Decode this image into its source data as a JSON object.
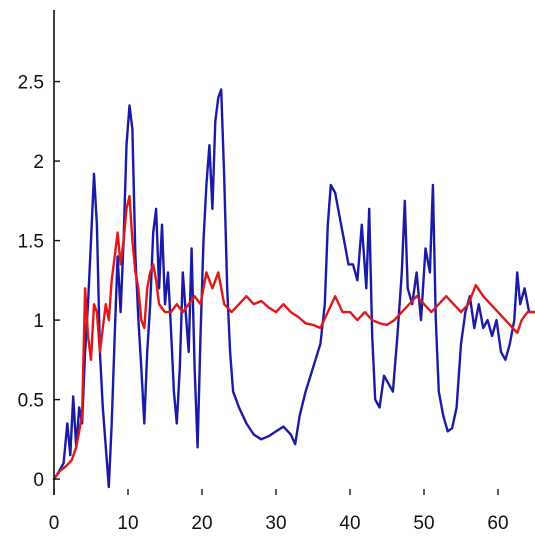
{
  "chart_data": {
    "type": "line",
    "title": "",
    "xlabel": "",
    "ylabel": "",
    "xlim": [
      0,
      65
    ],
    "ylim": [
      -0.1,
      2.95
    ],
    "x_ticks": [
      0,
      10,
      20,
      30,
      40,
      50,
      60
    ],
    "y_ticks": [
      0,
      0.5,
      1,
      1.5,
      2,
      2.5
    ],
    "x_tick_labels": [
      "0",
      "10",
      "20",
      "30",
      "40",
      "50",
      "60"
    ],
    "y_tick_labels": [
      "0",
      "0.5",
      "1",
      "1.5",
      "2",
      "2.5"
    ],
    "grid": false,
    "series": [
      {
        "color": "#1a1aa6",
        "points": [
          [
            0,
            0.0
          ],
          [
            0.7,
            0.05
          ],
          [
            1.3,
            0.1
          ],
          [
            1.8,
            0.35
          ],
          [
            2.2,
            0.15
          ],
          [
            2.6,
            0.52
          ],
          [
            3.0,
            0.2
          ],
          [
            3.4,
            0.45
          ],
          [
            3.8,
            0.35
          ],
          [
            4.2,
            0.8
          ],
          [
            4.6,
            1.1
          ],
          [
            5.0,
            1.5
          ],
          [
            5.4,
            1.92
          ],
          [
            5.8,
            1.6
          ],
          [
            6.2,
            0.8
          ],
          [
            6.6,
            0.45
          ],
          [
            7.0,
            0.2
          ],
          [
            7.4,
            -0.05
          ],
          [
            7.8,
            0.35
          ],
          [
            8.2,
            0.9
          ],
          [
            8.6,
            1.4
          ],
          [
            9.0,
            1.05
          ],
          [
            9.4,
            1.5
          ],
          [
            9.8,
            2.1
          ],
          [
            10.2,
            2.35
          ],
          [
            10.6,
            2.2
          ],
          [
            11.0,
            1.4
          ],
          [
            11.4,
            1.0
          ],
          [
            11.8,
            0.7
          ],
          [
            12.2,
            0.35
          ],
          [
            12.6,
            0.8
          ],
          [
            13.0,
            1.1
          ],
          [
            13.4,
            1.55
          ],
          [
            13.8,
            1.7
          ],
          [
            14.2,
            1.2
          ],
          [
            14.6,
            1.6
          ],
          [
            15.0,
            1.1
          ],
          [
            15.4,
            1.3
          ],
          [
            15.8,
            0.95
          ],
          [
            16.2,
            0.55
          ],
          [
            16.6,
            0.35
          ],
          [
            17.0,
            0.7
          ],
          [
            17.4,
            1.3
          ],
          [
            17.8,
            1.05
          ],
          [
            18.2,
            0.8
          ],
          [
            18.6,
            1.45
          ],
          [
            19.0,
            0.7
          ],
          [
            19.4,
            0.2
          ],
          [
            19.8,
            0.9
          ],
          [
            20.2,
            1.5
          ],
          [
            20.6,
            1.85
          ],
          [
            21.0,
            2.1
          ],
          [
            21.4,
            1.7
          ],
          [
            21.8,
            2.25
          ],
          [
            22.2,
            2.4
          ],
          [
            22.6,
            2.45
          ],
          [
            23.0,
            1.9
          ],
          [
            23.4,
            1.2
          ],
          [
            23.8,
            0.8
          ],
          [
            24.2,
            0.55
          ],
          [
            25.0,
            0.45
          ],
          [
            26.0,
            0.35
          ],
          [
            27.0,
            0.28
          ],
          [
            28.0,
            0.25
          ],
          [
            29.0,
            0.27
          ],
          [
            30.0,
            0.3
          ],
          [
            31.0,
            0.33
          ],
          [
            32.0,
            0.28
          ],
          [
            32.6,
            0.22
          ],
          [
            33.2,
            0.4
          ],
          [
            34.0,
            0.55
          ],
          [
            35.0,
            0.7
          ],
          [
            36.0,
            0.85
          ],
          [
            36.6,
            1.1
          ],
          [
            37.0,
            1.6
          ],
          [
            37.4,
            1.85
          ],
          [
            38.0,
            1.8
          ],
          [
            38.6,
            1.65
          ],
          [
            39.2,
            1.5
          ],
          [
            39.8,
            1.35
          ],
          [
            40.4,
            1.35
          ],
          [
            41.0,
            1.25
          ],
          [
            41.6,
            1.6
          ],
          [
            42.2,
            1.2
          ],
          [
            42.6,
            1.7
          ],
          [
            43.0,
            0.9
          ],
          [
            43.4,
            0.5
          ],
          [
            44.0,
            0.45
          ],
          [
            44.6,
            0.65
          ],
          [
            45.2,
            0.6
          ],
          [
            45.8,
            0.55
          ],
          [
            46.4,
            0.9
          ],
          [
            47.0,
            1.3
          ],
          [
            47.4,
            1.75
          ],
          [
            47.8,
            1.2
          ],
          [
            48.4,
            1.1
          ],
          [
            49.0,
            1.3
          ],
          [
            49.6,
            1.0
          ],
          [
            50.2,
            1.45
          ],
          [
            50.8,
            1.3
          ],
          [
            51.2,
            1.85
          ],
          [
            51.6,
            1.0
          ],
          [
            52.0,
            0.55
          ],
          [
            52.6,
            0.4
          ],
          [
            53.2,
            0.3
          ],
          [
            53.8,
            0.32
          ],
          [
            54.4,
            0.45
          ],
          [
            55.0,
            0.85
          ],
          [
            55.6,
            1.05
          ],
          [
            56.2,
            1.15
          ],
          [
            56.8,
            0.95
          ],
          [
            57.4,
            1.1
          ],
          [
            58.0,
            0.95
          ],
          [
            58.6,
            1.0
          ],
          [
            59.2,
            0.9
          ],
          [
            59.8,
            1.0
          ],
          [
            60.4,
            0.8
          ],
          [
            61.0,
            0.75
          ],
          [
            61.6,
            0.85
          ],
          [
            62.2,
            1.0
          ],
          [
            62.6,
            1.3
          ],
          [
            63.0,
            1.1
          ],
          [
            63.6,
            1.2
          ],
          [
            64.2,
            1.05
          ],
          [
            65.0,
            1.05
          ]
        ]
      },
      {
        "color": "#e01818",
        "points": [
          [
            0,
            0.0
          ],
          [
            0.8,
            0.05
          ],
          [
            1.6,
            0.08
          ],
          [
            2.4,
            0.12
          ],
          [
            3.0,
            0.2
          ],
          [
            3.4,
            0.3
          ],
          [
            3.8,
            0.4
          ],
          [
            4.2,
            1.2
          ],
          [
            4.6,
            0.9
          ],
          [
            5.0,
            0.75
          ],
          [
            5.4,
            1.1
          ],
          [
            5.8,
            1.05
          ],
          [
            6.2,
            0.8
          ],
          [
            6.6,
            0.95
          ],
          [
            7.0,
            1.1
          ],
          [
            7.4,
            1.0
          ],
          [
            7.8,
            1.25
          ],
          [
            8.2,
            1.4
          ],
          [
            8.6,
            1.55
          ],
          [
            9.0,
            1.35
          ],
          [
            9.4,
            1.5
          ],
          [
            9.8,
            1.7
          ],
          [
            10.2,
            1.78
          ],
          [
            10.6,
            1.5
          ],
          [
            11.0,
            1.3
          ],
          [
            11.4,
            1.2
          ],
          [
            11.8,
            1.0
          ],
          [
            12.2,
            0.95
          ],
          [
            12.6,
            1.2
          ],
          [
            13.0,
            1.3
          ],
          [
            13.4,
            1.35
          ],
          [
            13.8,
            1.25
          ],
          [
            14.2,
            1.1
          ],
          [
            15.0,
            1.05
          ],
          [
            15.8,
            1.05
          ],
          [
            16.6,
            1.1
          ],
          [
            17.4,
            1.05
          ],
          [
            18.2,
            1.1
          ],
          [
            19.0,
            1.15
          ],
          [
            19.8,
            1.1
          ],
          [
            20.6,
            1.3
          ],
          [
            21.4,
            1.2
          ],
          [
            22.2,
            1.3
          ],
          [
            23.0,
            1.1
          ],
          [
            24.0,
            1.05
          ],
          [
            25.0,
            1.1
          ],
          [
            26.0,
            1.15
          ],
          [
            27.0,
            1.1
          ],
          [
            28.0,
            1.12
          ],
          [
            29.0,
            1.08
          ],
          [
            30.0,
            1.05
          ],
          [
            31.0,
            1.1
          ],
          [
            32.0,
            1.05
          ],
          [
            33.0,
            1.02
          ],
          [
            34.0,
            0.98
          ],
          [
            35.0,
            0.97
          ],
          [
            36.0,
            0.95
          ],
          [
            37.0,
            1.05
          ],
          [
            38.0,
            1.15
          ],
          [
            39.0,
            1.05
          ],
          [
            40.0,
            1.05
          ],
          [
            41.0,
            1.0
          ],
          [
            42.0,
            1.05
          ],
          [
            43.0,
            1.0
          ],
          [
            44.0,
            0.98
          ],
          [
            45.0,
            0.97
          ],
          [
            46.0,
            1.0
          ],
          [
            47.0,
            1.05
          ],
          [
            48.0,
            1.1
          ],
          [
            49.0,
            1.15
          ],
          [
            50.0,
            1.1
          ],
          [
            51.0,
            1.05
          ],
          [
            52.0,
            1.1
          ],
          [
            53.0,
            1.15
          ],
          [
            54.0,
            1.1
          ],
          [
            55.0,
            1.05
          ],
          [
            56.0,
            1.1
          ],
          [
            57.0,
            1.22
          ],
          [
            58.0,
            1.15
          ],
          [
            59.0,
            1.1
          ],
          [
            60.0,
            1.05
          ],
          [
            61.0,
            1.0
          ],
          [
            62.0,
            0.95
          ],
          [
            62.6,
            0.92
          ],
          [
            63.2,
            1.0
          ],
          [
            64.0,
            1.05
          ],
          [
            65.0,
            1.05
          ]
        ]
      }
    ]
  }
}
